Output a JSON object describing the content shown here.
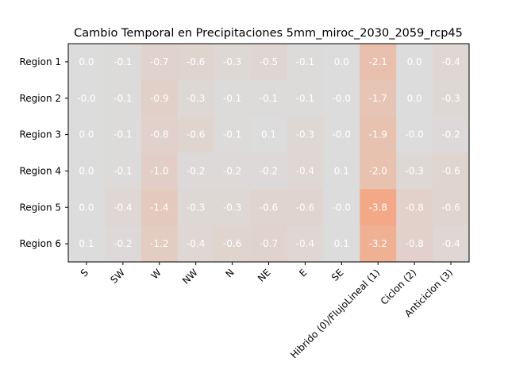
{
  "chart_data": {
    "type": "heatmap",
    "title": "Cambio Temporal en Precipitaciones 5mm_miroc_2030_2059_rcp45",
    "xlabel": "",
    "ylabel": "",
    "x_categories": [
      "S",
      "SW",
      "W",
      "NW",
      "N",
      "NE",
      "E",
      "SE",
      "Hibrido (0)/FlujoLineal (1)",
      "Ciclon (2)",
      "Anticiclon (3)"
    ],
    "y_categories": [
      "Region 1",
      "Region 2",
      "Region 3",
      "Region 4",
      "Region 5",
      "Region 6"
    ],
    "values": [
      [
        0.0,
        -0.1,
        -0.7,
        -0.6,
        -0.3,
        -0.5,
        -0.1,
        0.0,
        -2.1,
        0.0,
        -0.4
      ],
      [
        -0.0,
        -0.1,
        -0.9,
        -0.3,
        -0.1,
        -0.1,
        -0.1,
        -0.0,
        -1.7,
        0.0,
        -0.3
      ],
      [
        0.0,
        -0.1,
        -0.8,
        -0.6,
        -0.1,
        0.1,
        -0.3,
        -0.0,
        -1.9,
        -0.0,
        -0.2
      ],
      [
        0.0,
        -0.1,
        -1.0,
        -0.2,
        -0.2,
        -0.2,
        -0.4,
        0.1,
        -2.0,
        -0.3,
        -0.6
      ],
      [
        0.0,
        -0.4,
        -1.4,
        -0.3,
        -0.3,
        -0.6,
        -0.6,
        -0.0,
        -3.8,
        -0.8,
        -0.6
      ],
      [
        0.1,
        -0.2,
        -1.2,
        -0.4,
        -0.6,
        -0.7,
        -0.4,
        0.1,
        -3.2,
        -0.8,
        -0.4
      ]
    ],
    "value_labels": [
      [
        "0.0",
        "-0.1",
        "-0.7",
        "-0.6",
        "-0.3",
        "-0.5",
        "-0.1",
        "0.0",
        "-2.1",
        "0.0",
        "-0.4"
      ],
      [
        "-0.0",
        "-0.1",
        "-0.9",
        "-0.3",
        "-0.1",
        "-0.1",
        "-0.1",
        "-0.0",
        "-1.7",
        "0.0",
        "-0.3"
      ],
      [
        "0.0",
        "-0.1",
        "-0.8",
        "-0.6",
        "-0.1",
        "0.1",
        "-0.3",
        "-0.0",
        "-1.9",
        "-0.0",
        "-0.2"
      ],
      [
        "0.0",
        "-0.1",
        "-1.0",
        "-0.2",
        "-0.2",
        "-0.2",
        "-0.4",
        "0.1",
        "-2.0",
        "-0.3",
        "-0.6"
      ],
      [
        "0.0",
        "-0.4",
        "-1.4",
        "-0.3",
        "-0.3",
        "-0.6",
        "-0.6",
        "-0.0",
        "-3.8",
        "-0.8",
        "-0.6"
      ],
      [
        "0.1",
        "-0.2",
        "-1.2",
        "-0.4",
        "-0.6",
        "-0.7",
        "-0.4",
        "0.1",
        "-3.2",
        "-0.8",
        "-0.4"
      ]
    ],
    "color_scale": {
      "neutral": "#dcdcdc",
      "negative": "#f4a582",
      "range": [
        -4,
        4
      ]
    },
    "grid": false,
    "legend": "none"
  }
}
